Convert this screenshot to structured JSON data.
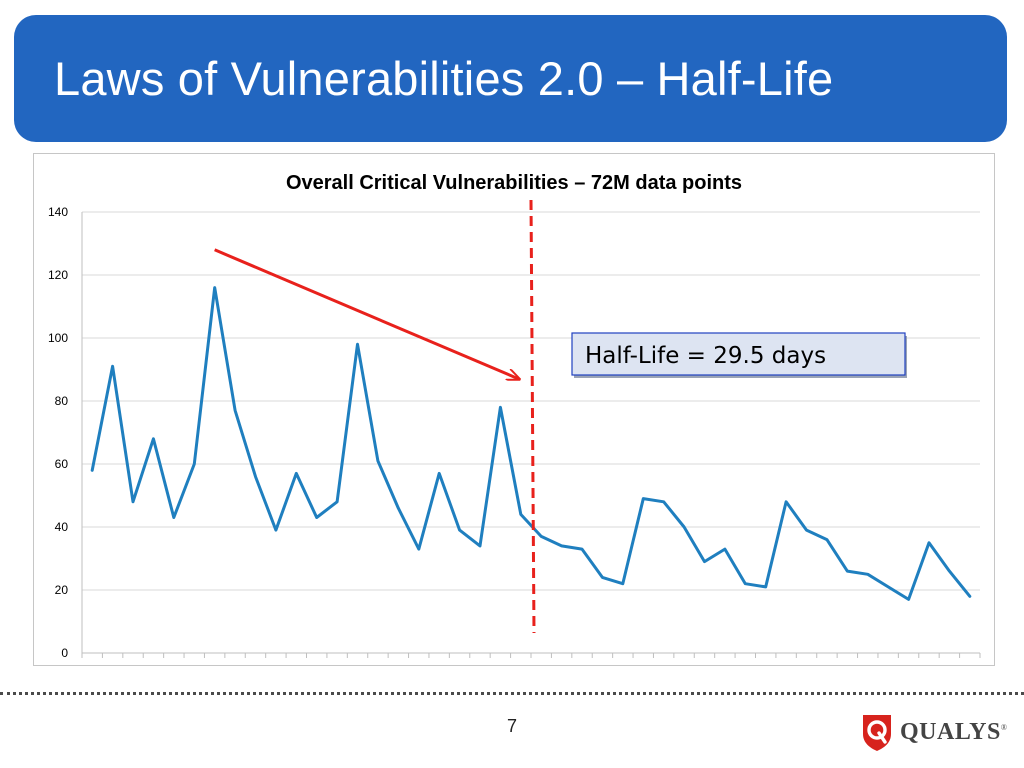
{
  "slide": {
    "title": "Laws of Vulnerabilities 2.0 – Half-Life",
    "page_number": "7",
    "logo_text": "QUALYS",
    "logo_registered": "®"
  },
  "chart_data": {
    "type": "line",
    "title": "Overall Critical Vulnerabilities – 72M data points",
    "xlabel": "",
    "ylabel": "",
    "ylim": [
      0,
      140
    ],
    "yticks": [
      0,
      20,
      40,
      60,
      80,
      100,
      120,
      140
    ],
    "x_categories": 44,
    "grid": true,
    "series": [
      {
        "color": "#1f7fbf",
        "values": [
          58,
          91,
          48,
          68,
          43,
          60,
          116,
          77,
          56,
          39,
          57,
          43,
          48,
          98,
          61,
          46,
          33,
          57,
          39,
          34,
          78,
          44,
          37,
          34,
          33,
          24,
          22,
          49,
          48,
          40,
          29,
          33,
          22,
          21,
          48,
          39,
          36,
          26,
          25,
          21,
          17,
          35,
          26,
          18
        ]
      }
    ],
    "divider": {
      "x_index": 21.5,
      "style": "dashed",
      "color": "#e8211c"
    },
    "trend_arrow": {
      "from": [
        6,
        128
      ],
      "to": [
        20.9,
        87
      ],
      "color": "#e8211c"
    },
    "annotation": {
      "text": "Half-Life = 29.5 days",
      "fill": "#dde4f2",
      "border": "#2040c0"
    }
  }
}
